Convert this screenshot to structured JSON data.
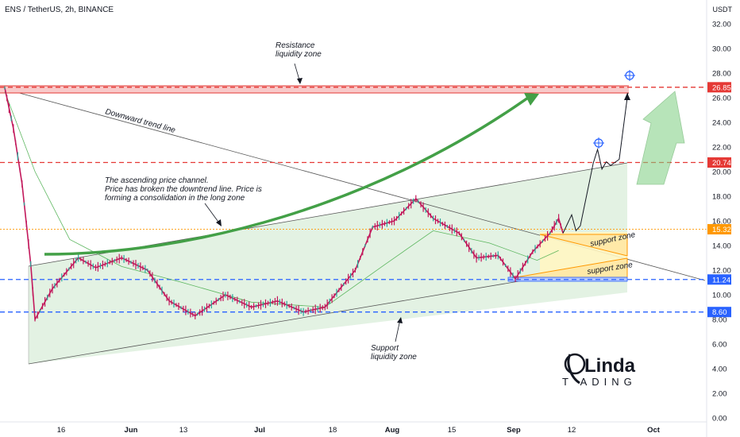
{
  "header": {
    "title": "ENS / TetherUS, 2h, BINANCE",
    "unit": "USDT"
  },
  "chart_data": {
    "type": "candlestick",
    "symbol": "ENS / TetherUS",
    "interval": "2h",
    "exchange": "BINANCE",
    "y_unit": "USDT",
    "ylim": [
      0,
      34
    ],
    "y_ticks": [
      "32.00",
      "30.00",
      "28.00",
      "26.00",
      "24.00",
      "22.00",
      "20.00",
      "18.00",
      "16.00",
      "14.00",
      "12.00",
      "10.00",
      "8.00",
      "6.00",
      "4.00",
      "2.00",
      "0.00"
    ],
    "x_ticks": [
      {
        "label": "16",
        "bold": false
      },
      {
        "label": "Jun",
        "bold": true
      },
      {
        "label": "13",
        "bold": false
      },
      {
        "label": "Jul",
        "bold": true
      },
      {
        "label": "18",
        "bold": false
      },
      {
        "label": "Aug",
        "bold": true
      },
      {
        "label": "15",
        "bold": false
      },
      {
        "label": "Sep",
        "bold": true
      },
      {
        "label": "12",
        "bold": false
      },
      {
        "label": "Oct",
        "bold": true
      }
    ],
    "price_levels": [
      {
        "label": "26.85",
        "value": 26.85,
        "color": "#e53935"
      },
      {
        "label": "20.74",
        "value": 20.74,
        "color": "#e53935"
      },
      {
        "label": "15.32",
        "value": 15.32,
        "color": "#ff9800"
      },
      {
        "label": "11.24",
        "value": 11.24,
        "color": "#2962ff"
      },
      {
        "label": "8.60",
        "value": 8.6,
        "color": "#2962ff"
      }
    ],
    "close_path": [
      {
        "date": "2022-05-05",
        "price": 26.8
      },
      {
        "date": "2022-05-07",
        "price": 23.5
      },
      {
        "date": "2022-05-09",
        "price": 19.0
      },
      {
        "date": "2022-05-11",
        "price": 12.5
      },
      {
        "date": "2022-05-12",
        "price": 8.0
      },
      {
        "date": "2022-05-16",
        "price": 10.5
      },
      {
        "date": "2022-05-22",
        "price": 13.0
      },
      {
        "date": "2022-05-26",
        "price": 12.2
      },
      {
        "date": "2022-06-01",
        "price": 13.0
      },
      {
        "date": "2022-06-07",
        "price": 12.0
      },
      {
        "date": "2022-06-12",
        "price": 9.5
      },
      {
        "date": "2022-06-18",
        "price": 8.3
      },
      {
        "date": "2022-06-25",
        "price": 10.0
      },
      {
        "date": "2022-07-01",
        "price": 9.0
      },
      {
        "date": "2022-07-07",
        "price": 9.5
      },
      {
        "date": "2022-07-13",
        "price": 8.6
      },
      {
        "date": "2022-07-18",
        "price": 9.0
      },
      {
        "date": "2022-07-25",
        "price": 12.0
      },
      {
        "date": "2022-07-29",
        "price": 15.5
      },
      {
        "date": "2022-08-03",
        "price": 16.0
      },
      {
        "date": "2022-08-08",
        "price": 17.8
      },
      {
        "date": "2022-08-12",
        "price": 16.2
      },
      {
        "date": "2022-08-18",
        "price": 15.0
      },
      {
        "date": "2022-08-22",
        "price": 13.0
      },
      {
        "date": "2022-08-27",
        "price": 13.2
      },
      {
        "date": "2022-08-31",
        "price": 11.3
      },
      {
        "date": "2022-09-04",
        "price": 13.5
      },
      {
        "date": "2022-09-08",
        "price": 15.0
      },
      {
        "date": "2022-09-10",
        "price": 16.2
      },
      {
        "date": "2022-09-11",
        "price": 15.0
      }
    ],
    "moving_average": [
      {
        "date": "2022-05-05",
        "price": 26.5
      },
      {
        "date": "2022-05-12",
        "price": 20.0
      },
      {
        "date": "2022-05-20",
        "price": 14.5
      },
      {
        "date": "2022-06-01",
        "price": 12.3
      },
      {
        "date": "2022-06-15",
        "price": 11.0
      },
      {
        "date": "2022-07-01",
        "price": 9.4
      },
      {
        "date": "2022-07-18",
        "price": 9.0
      },
      {
        "date": "2022-08-01",
        "price": 12.5
      },
      {
        "date": "2022-08-12",
        "price": 15.2
      },
      {
        "date": "2022-08-25",
        "price": 14.2
      },
      {
        "date": "2022-09-05",
        "price": 12.8
      },
      {
        "date": "2022-09-10",
        "price": 13.6
      }
    ],
    "projection": [
      {
        "date": "2022-09-11",
        "price": 15.0
      },
      {
        "date": "2022-09-13",
        "price": 16.5
      },
      {
        "date": "2022-09-14",
        "price": 15.2
      },
      {
        "date": "2022-09-15",
        "price": 15.6
      },
      {
        "date": "2022-09-18",
        "price": 20.7
      },
      {
        "date": "2022-09-19",
        "price": 21.8
      },
      {
        "date": "2022-09-20",
        "price": 20.2
      },
      {
        "date": "2022-09-21",
        "price": 20.8
      },
      {
        "date": "2022-09-22",
        "price": 20.5
      },
      {
        "date": "2022-09-24",
        "price": 21.0
      },
      {
        "date": "2022-09-26",
        "price": 26.4
      }
    ],
    "annotations": [
      {
        "id": "resistance",
        "lines": [
          "Resistance",
          "liquidity zone"
        ]
      },
      {
        "id": "trend",
        "lines": [
          "Downward trend line"
        ]
      },
      {
        "id": "channel",
        "lines": [
          "The ascending price channel.",
          "Price has broken the downtrend line. Price is",
          "forming a consolidation in the long zone"
        ]
      },
      {
        "id": "support-upper",
        "lines": [
          "support zone"
        ]
      },
      {
        "id": "support-lower",
        "lines": [
          "support zone"
        ]
      },
      {
        "id": "support-liquidity",
        "lines": [
          "Support",
          "liquidity zone"
        ]
      }
    ],
    "grid": false,
    "colors": {
      "up": "#26a69a",
      "down": "#c2185b",
      "resistance": "#e53935",
      "support": "#2962ff",
      "pivot": "#ff9800",
      "big_arrow": "#43a047",
      "channel_fill": "#d8ecd8",
      "support_box": "#fff3b0"
    }
  },
  "logo": {
    "text": "Linda TRADING"
  }
}
